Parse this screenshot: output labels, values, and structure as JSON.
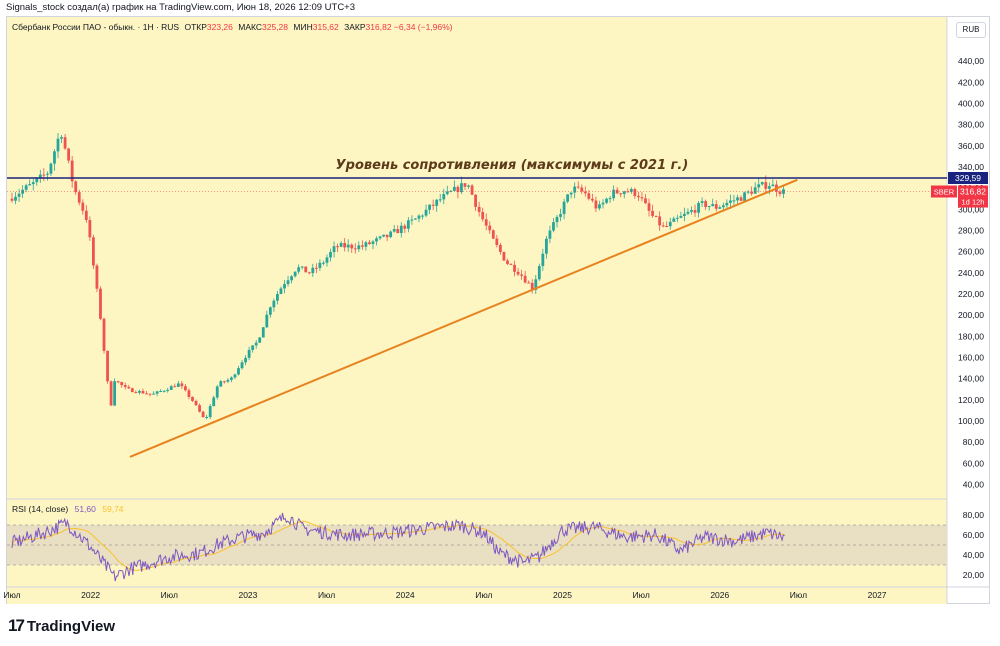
{
  "credit": "Signals_stock создал(а) график на TradingView.com, Июн 18, 2026 12:09 UTC+3",
  "header": {
    "title": "Сбербанк России ПАО - обыкн. · 1Н · RUS",
    "open_label": "ОТКР",
    "open": "323,26",
    "high_label": "МАКС",
    "high": "325,28",
    "low_label": "МИН",
    "low": "315,62",
    "close_label": "ЗАКР",
    "close": "316,82",
    "change": "−6,34 (−1,96%)"
  },
  "currency": "RUB",
  "rsi": {
    "label": "RSI (14, close)",
    "value1": "51,60",
    "value2": "59,74"
  },
  "logo": {
    "mark": "17",
    "name": "TradingView"
  },
  "colors": {
    "background": "#fdf6c3",
    "up": "#26a69a",
    "down": "#ef5350",
    "resistance": "#1a237e",
    "trend": "#e8821e",
    "rsi": "#7e57c2",
    "rsi_ma": "#fbc02d",
    "price_badge": "#f23645"
  },
  "chart_data": {
    "type": "candlestick",
    "ylim": [
      30,
      460
    ],
    "y_ticks": [
      "440,00",
      "420,00",
      "400,00",
      "380,00",
      "360,00",
      "340,00",
      "320,00",
      "300,00",
      "280,00",
      "260,00",
      "240,00",
      "220,00",
      "200,00",
      "180,00",
      "160,00",
      "140,00",
      "120,00",
      "100,00",
      "80,00",
      "60,00",
      "40,00"
    ],
    "x_ticks": [
      "Июл",
      "2022",
      "Июл",
      "2023",
      "Июл",
      "2024",
      "Июл",
      "2025",
      "Июл",
      "2026",
      "Июл",
      "2027"
    ],
    "price_path": [
      [
        "2021-07",
        310
      ],
      [
        "2021-09",
        325
      ],
      [
        "2021-10",
        335
      ],
      [
        "2021-11",
        375
      ],
      [
        "2021-12",
        320
      ],
      [
        "2022-01",
        290
      ],
      [
        "2022-02",
        200
      ],
      [
        "2022-02-25",
        110
      ],
      [
        "2022-03",
        140
      ],
      [
        "2022-04",
        130
      ],
      [
        "2022-06",
        125
      ],
      [
        "2022-07",
        130
      ],
      [
        "2022-08",
        135
      ],
      [
        "2022-09",
        120
      ],
      [
        "2022-10",
        100
      ],
      [
        "2022-11",
        135
      ],
      [
        "2022-12",
        140
      ],
      [
        "2023-01",
        160
      ],
      [
        "2023-02",
        175
      ],
      [
        "2023-03",
        210
      ],
      [
        "2023-04",
        230
      ],
      [
        "2023-05",
        245
      ],
      [
        "2023-06",
        240
      ],
      [
        "2023-07",
        250
      ],
      [
        "2023-08",
        265
      ],
      [
        "2023-10",
        265
      ],
      [
        "2023-12",
        275
      ],
      [
        "2024-02",
        290
      ],
      [
        "2024-04",
        310
      ],
      [
        "2024-06",
        325
      ],
      [
        "2024-07",
        295
      ],
      [
        "2024-08",
        270
      ],
      [
        "2024-09",
        250
      ],
      [
        "2024-10",
        240
      ],
      [
        "2024-11",
        225
      ],
      [
        "2024-12",
        270
      ],
      [
        "2025-01",
        295
      ],
      [
        "2025-02",
        320
      ],
      [
        "2025-03",
        315
      ],
      [
        "2025-04",
        300
      ],
      [
        "2025-05",
        315
      ],
      [
        "2025-06",
        318
      ],
      [
        "2025-07",
        315
      ],
      [
        "2025-08",
        295
      ],
      [
        "2025-09",
        282
      ],
      [
        "2025-10",
        290
      ],
      [
        "2025-12",
        305
      ],
      [
        "2026-01",
        302
      ],
      [
        "2026-03",
        312
      ],
      [
        "2026-04",
        320
      ],
      [
        "2026-05",
        324
      ],
      [
        "2026-06",
        316.82
      ]
    ],
    "annotations": [
      {
        "type": "hline",
        "price": 329.59,
        "label": "Уровень сопротивления (максимумы с 2021 г.)"
      },
      {
        "type": "trendline",
        "from": [
          "2022-04",
          66
        ],
        "to": [
          "2026-06",
          325
        ]
      }
    ],
    "price_labels": {
      "resistance": "329,59",
      "last": "316,82",
      "ticker": "SBER",
      "countdown": "1d 12h"
    },
    "rsi_ticks": [
      "80,00",
      "60,00",
      "40,00",
      "20,00"
    ],
    "rsi_levels": {
      "upper": 70,
      "middle": 50,
      "lower": 30
    },
    "rsi_range": [
      10,
      90
    ]
  }
}
